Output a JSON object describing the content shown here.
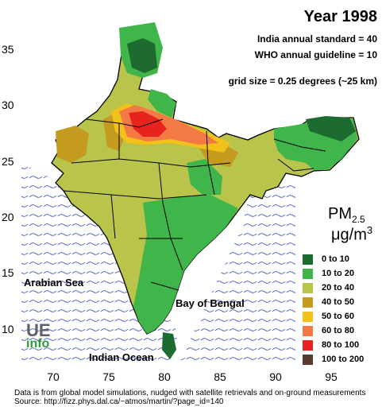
{
  "title": "Year 1998",
  "standards": {
    "india": "India annual standard = 40",
    "who": "WHO annual guideline = 10",
    "grid": "grid size = 0.25 degrees (~25 km)"
  },
  "pollutant": {
    "symbol": "PM",
    "subscript": "2.5",
    "unit": "μg/m",
    "unit_power": "3"
  },
  "legend": [
    {
      "label": "0 to 10",
      "color": "#1e6b32"
    },
    {
      "label": "10 to 20",
      "color": "#3fb54a"
    },
    {
      "label": "20 to 40",
      "color": "#b9c44a"
    },
    {
      "label": "40 to 50",
      "color": "#c49a1f"
    },
    {
      "label": "50 to 60",
      "color": "#f2c21a"
    },
    {
      "label": "60 to 80",
      "color": "#f47a45"
    },
    {
      "label": "80 to 100",
      "color": "#e8231d"
    },
    {
      "label": "100 to 200",
      "color": "#5a3a2e"
    }
  ],
  "places": {
    "arabian_sea": "Arabian Sea",
    "bay_of_bengal": "Bay of Bengal",
    "indian_ocean": "Indian Ocean"
  },
  "logo": {
    "top": "UE",
    "bottom": "info"
  },
  "x_ticks": [
    "70",
    "75",
    "80",
    "85",
    "90",
    "95"
  ],
  "y_ticks": [
    "35",
    "30",
    "25",
    "20",
    "15",
    "10"
  ],
  "footnotes": {
    "line1": "Data is from global model simulations, nudged with satellite retrievals and on-ground measurements",
    "line2": "Source: http://fizz.phys.dal.ca/~atmos/martin/?page_id=140"
  },
  "colors": {
    "sea_wave": "#3a4fc4",
    "sea": "#ffffff",
    "border": "#000000"
  }
}
